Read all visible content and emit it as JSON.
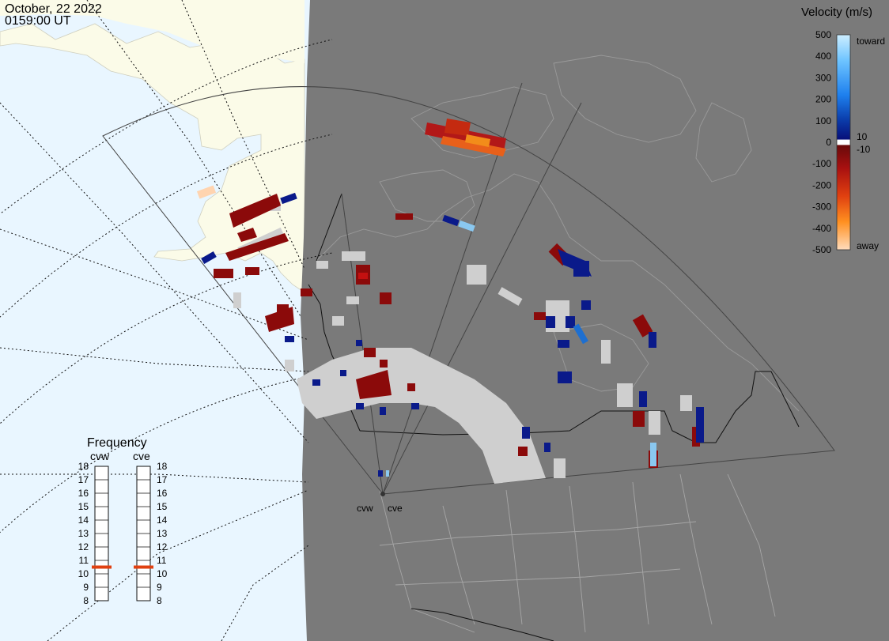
{
  "header": {
    "date": "October, 22 2022",
    "time": "0159:00 UT"
  },
  "legend": {
    "title": "Velocity (m/s)",
    "labels": [
      "500",
      "400",
      "300",
      "200",
      "100",
      "0",
      "-100",
      "-200",
      "-300",
      "-400",
      "-500"
    ],
    "mid_top": "10",
    "mid_bottom": "-10",
    "toward": "toward",
    "away": "away",
    "colors": {
      "toward_light": "#cdeeff",
      "toward_mid": "#1e90ff",
      "toward_dark": "#0a2a8c",
      "away_dark": "#7a0000",
      "away_mid": "#e03010",
      "away_light": "#ffd8b0"
    }
  },
  "frequency": {
    "title": "Frequency",
    "radar_left": "cvw",
    "radar_right": "cve",
    "ticks": [
      "18",
      "17",
      "16",
      "15",
      "14",
      "13",
      "12",
      "11",
      "10",
      "9",
      "8"
    ],
    "cvw_mhz": 10.5,
    "cve_mhz": 10.5,
    "marker_color": "#e04010"
  },
  "radars": {
    "labels": [
      "cvw",
      "cve"
    ]
  },
  "map": {
    "night_color": "#7a7a7a",
    "ocean_color": "#e9f6ff",
    "land_color": "#fbfbe8",
    "ground_scatter_color": "#cfcfcf"
  }
}
